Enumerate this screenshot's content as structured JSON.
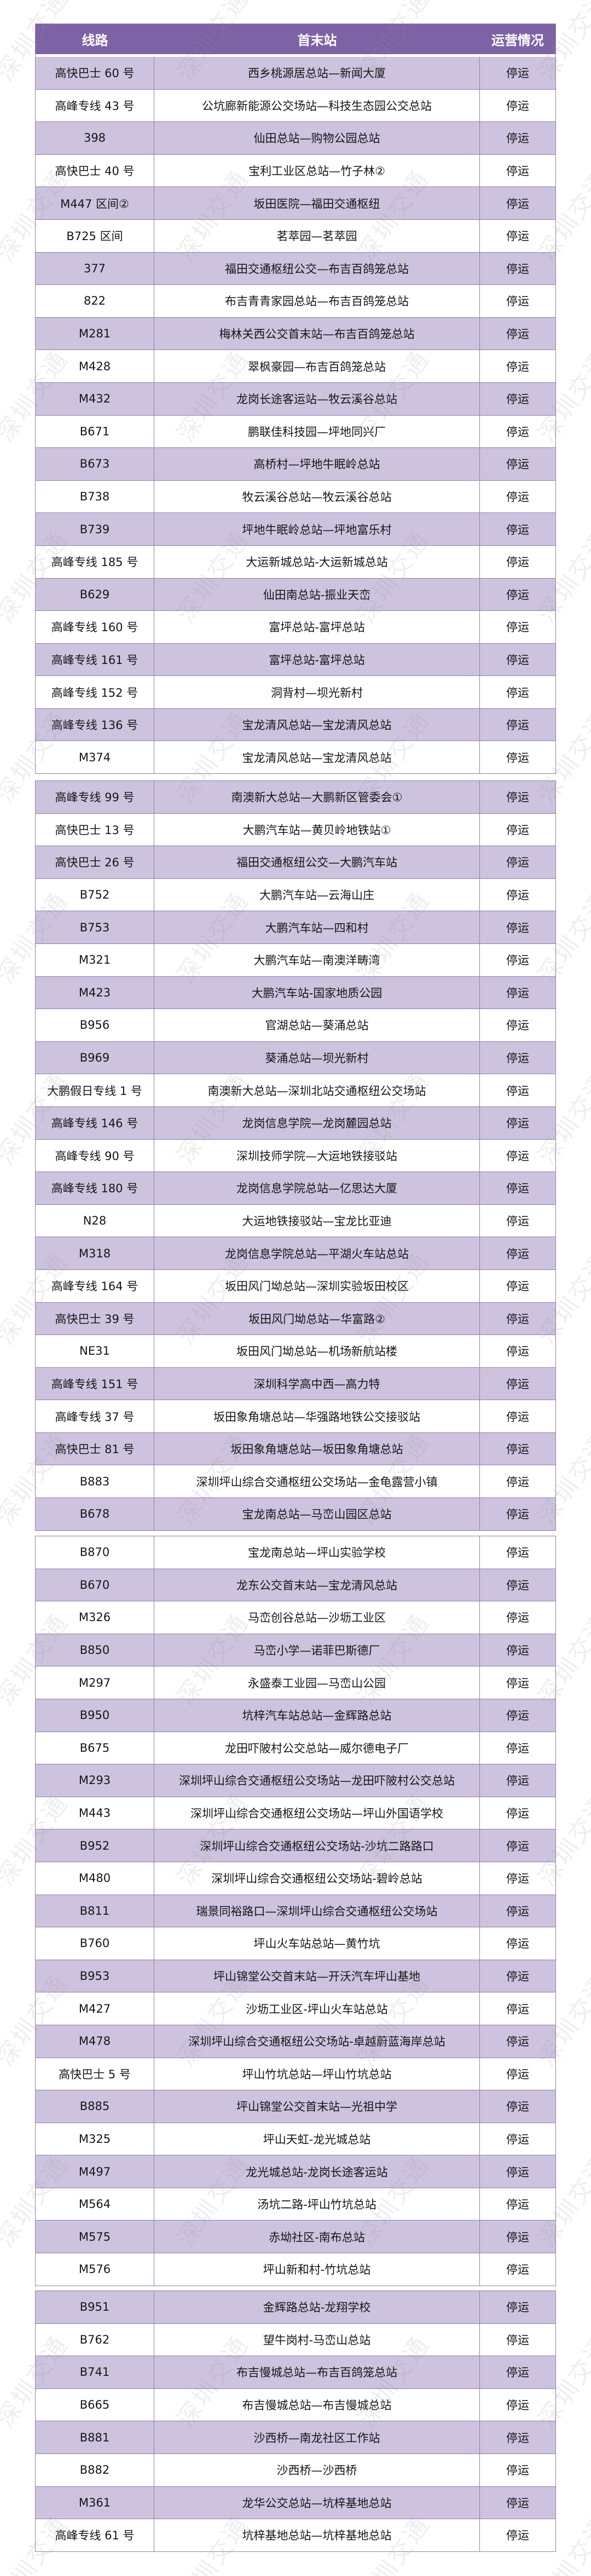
{
  "watermark": "深圳交通",
  "colors": {
    "header": "#7d62a6",
    "stripe": "#cdc3de",
    "border": "#8f80ad"
  },
  "header": {
    "route": "线路",
    "terminals": "首末站",
    "status": "运营情况"
  },
  "segments": [
    [
      {
        "route": "高快巴士 60 号",
        "terminals": "西乡桃源居总站—新闻大厦",
        "status": "停运"
      },
      {
        "route": "高峰专线 43 号",
        "terminals": "公坑廊新能源公交场站—科技生态园公交总站",
        "status": "停运"
      },
      {
        "route": "398",
        "terminals": "仙田总站—购物公园总站",
        "status": "停运"
      },
      {
        "route": "高快巴士 40 号",
        "terminals": "宝利工业区总站—竹子林②",
        "status": "停运"
      },
      {
        "route": "M447 区间②",
        "terminals": "坂田医院—福田交通枢纽",
        "status": "停运"
      },
      {
        "route": "B725 区间",
        "terminals": "茗萃园—茗萃园",
        "status": "停运"
      },
      {
        "route": "377",
        "terminals": "福田交通枢纽公交—布吉百鸽笼总站",
        "status": "停运"
      },
      {
        "route": "822",
        "terminals": "布吉青青家园总站—布吉百鸽笼总站",
        "status": "停运"
      },
      {
        "route": "M281",
        "terminals": "梅林关西公交首末站—布吉百鸽笼总站",
        "status": "停运"
      },
      {
        "route": "M428",
        "terminals": "翠枫豪园—布吉百鸽笼总站",
        "status": "停运"
      },
      {
        "route": "M432",
        "terminals": "龙岗长途客运站—牧云溪谷总站",
        "status": "停运"
      },
      {
        "route": "B671",
        "terminals": "鹏联佳科技园—坪地同兴厂",
        "status": "停运"
      },
      {
        "route": "B673",
        "terminals": "高桥村—坪地牛眠岭总站",
        "status": "停运"
      },
      {
        "route": "B738",
        "terminals": "牧云溪谷总站—牧云溪谷总站",
        "status": "停运"
      },
      {
        "route": "B739",
        "terminals": "坪地牛眠岭总站—坪地富乐村",
        "status": "停运"
      },
      {
        "route": "高峰专线 185 号",
        "terminals": "大运新城总站-大运新城总站",
        "status": "停运"
      },
      {
        "route": "B629",
        "terminals": "仙田南总站-振业天峦",
        "status": "停运"
      },
      {
        "route": "高峰专线 160 号",
        "terminals": "富坪总站-富坪总站",
        "status": "停运"
      },
      {
        "route": "高峰专线 161 号",
        "terminals": "富坪总站-富坪总站",
        "status": "停运"
      },
      {
        "route": "高峰专线 152 号",
        "terminals": "洞背村—坝光新村",
        "status": "停运"
      },
      {
        "route": "高峰专线 136 号",
        "terminals": "宝龙清风总站—宝龙清风总站",
        "status": "停运"
      },
      {
        "route": "M374",
        "terminals": "宝龙清风总站—宝龙清风总站",
        "status": "停运"
      }
    ],
    [
      {
        "route": "高峰专线 99 号",
        "terminals": "南澳新大总站—大鹏新区管委会①",
        "status": "停运"
      },
      {
        "route": "高快巴士 13 号",
        "terminals": "大鹏汽车站—黄贝岭地铁站①",
        "status": "停运"
      },
      {
        "route": "高快巴士 26 号",
        "terminals": "福田交通枢纽公交—大鹏汽车站",
        "status": "停运"
      },
      {
        "route": "B752",
        "terminals": "大鹏汽车站—云海山庄",
        "status": "停运"
      },
      {
        "route": "B753",
        "terminals": "大鹏汽车站—四和村",
        "status": "停运"
      },
      {
        "route": "M321",
        "terminals": "大鹏汽车站—南澳洋畴湾",
        "status": "停运"
      },
      {
        "route": "M423",
        "terminals": "大鹏汽车站-国家地质公园",
        "status": "停运"
      },
      {
        "route": "B956",
        "terminals": "官湖总站—葵涌总站",
        "status": "停运"
      },
      {
        "route": "B969",
        "terminals": "葵涌总站—坝光新村",
        "status": "停运"
      },
      {
        "route": "大鹏假日专线 1 号",
        "terminals": "南澳新大总站—深圳北站交通枢纽公交场站",
        "status": "停运"
      },
      {
        "route": "高峰专线 146 号",
        "terminals": "龙岗信息学院—龙岗麓园总站",
        "status": "停运"
      },
      {
        "route": "高峰专线 90 号",
        "terminals": "深圳技师学院—大运地铁接驳站",
        "status": "停运"
      },
      {
        "route": "高峰专线 180 号",
        "terminals": "龙岗信息学院总站—亿思达大厦",
        "status": "停运"
      },
      {
        "route": "N28",
        "terminals": "大运地铁接驳站—宝龙比亚迪",
        "status": "停运"
      },
      {
        "route": "M318",
        "terminals": "龙岗信息学院总站—平湖火车站总站",
        "status": "停运"
      },
      {
        "route": "高峰专线 164 号",
        "terminals": "坂田风门坳总站—深圳实验坂田校区",
        "status": "停运"
      },
      {
        "route": "高快巴士 39 号",
        "terminals": "坂田风门坳总站—华富路②",
        "status": "停运"
      },
      {
        "route": "NE31",
        "terminals": "坂田风门坳总站—机场新航站楼",
        "status": "停运"
      },
      {
        "route": "高峰专线 151 号",
        "terminals": "深圳科学高中西—高力特",
        "status": "停运"
      },
      {
        "route": "高峰专线 37 号",
        "terminals": "坂田象角塘总站—华强路地铁公交接驳站",
        "status": "停运"
      },
      {
        "route": "高快巴士 81 号",
        "terminals": "坂田象角塘总站—坂田象角塘总站",
        "status": "停运"
      },
      {
        "route": "B883",
        "terminals": "深圳坪山综合交通枢纽公交场站—金龟露营小镇",
        "status": "停运"
      },
      {
        "route": "B678",
        "terminals": "宝龙南总站—马峦山园区总站",
        "status": "停运"
      }
    ],
    [
      {
        "route": "B870",
        "terminals": "宝龙南总站—坪山实验学校",
        "status": "停运"
      },
      {
        "route": "B670",
        "terminals": "龙东公交首末站—宝龙清风总站",
        "status": "停运"
      },
      {
        "route": "M326",
        "terminals": "马峦创谷总站—沙坜工业区",
        "status": "停运"
      },
      {
        "route": "B850",
        "terminals": "马峦小学—诺菲巴斯德厂",
        "status": "停运"
      },
      {
        "route": "M297",
        "terminals": "永盛泰工业园—马峦山公园",
        "status": "停运"
      },
      {
        "route": "B950",
        "terminals": "坑梓汽车站总站—金辉路总站",
        "status": "停运"
      },
      {
        "route": "B675",
        "terminals": "龙田吓陂村公交总站—威尔德电子厂",
        "status": "停运"
      },
      {
        "route": "M293",
        "terminals": "深圳坪山综合交通枢纽公交场站—龙田吓陂村公交总站",
        "status": "停运"
      },
      {
        "route": "M443",
        "terminals": "深圳坪山综合交通枢纽公交场站—坪山外国语学校",
        "status": "停运"
      },
      {
        "route": "B952",
        "terminals": "深圳坪山综合交通枢纽公交场站-沙坑二路路口",
        "status": "停运"
      },
      {
        "route": "M480",
        "terminals": "深圳坪山综合交通枢纽公交场站-碧岭总站",
        "status": "停运"
      },
      {
        "route": "B811",
        "terminals": "瑞景同裕路口—深圳坪山综合交通枢纽公交场站",
        "status": "停运"
      },
      {
        "route": "B760",
        "terminals": "坪山火车站总站—黄竹坑",
        "status": "停运"
      },
      {
        "route": "B953",
        "terminals": "坪山锦堂公交首末站—开沃汽车坪山基地",
        "status": "停运"
      },
      {
        "route": "M427",
        "terminals": "沙坜工业区-坪山火车站总站",
        "status": "停运"
      },
      {
        "route": "M478",
        "terminals": "深圳坪山综合交通枢纽公交场站-卓越蔚蓝海岸总站",
        "status": "停运"
      },
      {
        "route": "高快巴士 5 号",
        "terminals": "坪山竹坑总站—坪山竹坑总站",
        "status": "停运"
      },
      {
        "route": "B885",
        "terminals": "坪山锦堂公交首末站—光祖中学",
        "status": "停运"
      },
      {
        "route": "M325",
        "terminals": "坪山天虹-龙光城总站",
        "status": "停运"
      },
      {
        "route": "M497",
        "terminals": "龙光城总站-龙岗长途客运站",
        "status": "停运"
      },
      {
        "route": "M564",
        "terminals": "汤坑二路-坪山竹坑总站",
        "status": "停运"
      },
      {
        "route": "M575",
        "terminals": "赤坳社区-南布总站",
        "status": "停运"
      },
      {
        "route": "M576",
        "terminals": "坪山新和村-竹坑总站",
        "status": "停运"
      }
    ],
    [
      {
        "route": "B951",
        "terminals": "金辉路总站-龙翔学校",
        "status": "停运"
      },
      {
        "route": "B762",
        "terminals": "望牛岗村-马峦山总站",
        "status": "停运"
      },
      {
        "route": "B741",
        "terminals": "布吉慢城总站—布吉百鸽笼总站",
        "status": "停运"
      },
      {
        "route": "B665",
        "terminals": "布吉慢城总站—布吉慢城总站",
        "status": "停运"
      },
      {
        "route": "B881",
        "terminals": "沙西桥—南龙社区工作站",
        "status": "停运"
      },
      {
        "route": "B882",
        "terminals": "沙西桥—沙西桥",
        "status": "停运"
      },
      {
        "route": "M361",
        "terminals": "龙华公交总站—坑梓基地总站",
        "status": "停运"
      },
      {
        "route": "高峰专线 61 号",
        "terminals": "坑梓基地总站—坑梓基地总站",
        "status": "停运"
      }
    ]
  ]
}
